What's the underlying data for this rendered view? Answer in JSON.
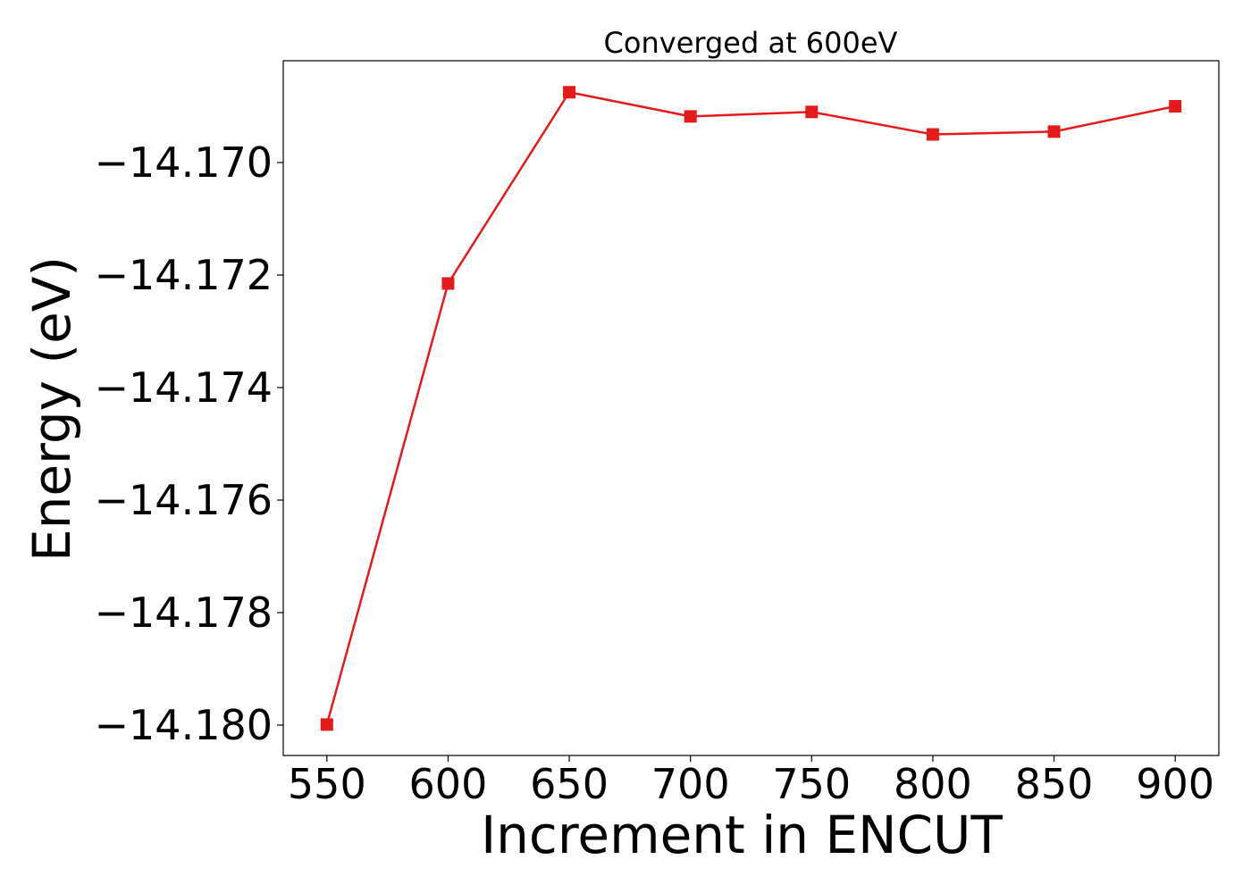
{
  "chart_data": {
    "type": "line",
    "title": "Converged at 600eV",
    "xlabel": "Increment in ENCUT",
    "ylabel": "Energy (eV)",
    "x": [
      550,
      600,
      650,
      700,
      750,
      800,
      850,
      900
    ],
    "x_tick_labels": [
      "550",
      "600",
      "650",
      "700",
      "750",
      "800",
      "850",
      "900"
    ],
    "y_tick_values": [
      -14.17,
      -14.172,
      -14.174,
      -14.176,
      -14.178,
      -14.18
    ],
    "y_tick_labels": [
      "−14.170",
      "−14.172",
      "−14.174",
      "−14.176",
      "−14.178",
      "−14.180"
    ],
    "series": [
      {
        "values": [
          -14.17999,
          -14.17215,
          -14.16875,
          -14.16918,
          -14.1691,
          -14.1695,
          -14.16945,
          -14.169
        ],
        "color": "#e41a1c",
        "marker": "square"
      }
    ],
    "xlim": [
      532,
      918
    ],
    "ylim": [
      -14.18054,
      -14.16819
    ],
    "grid": false,
    "legend": "none"
  }
}
